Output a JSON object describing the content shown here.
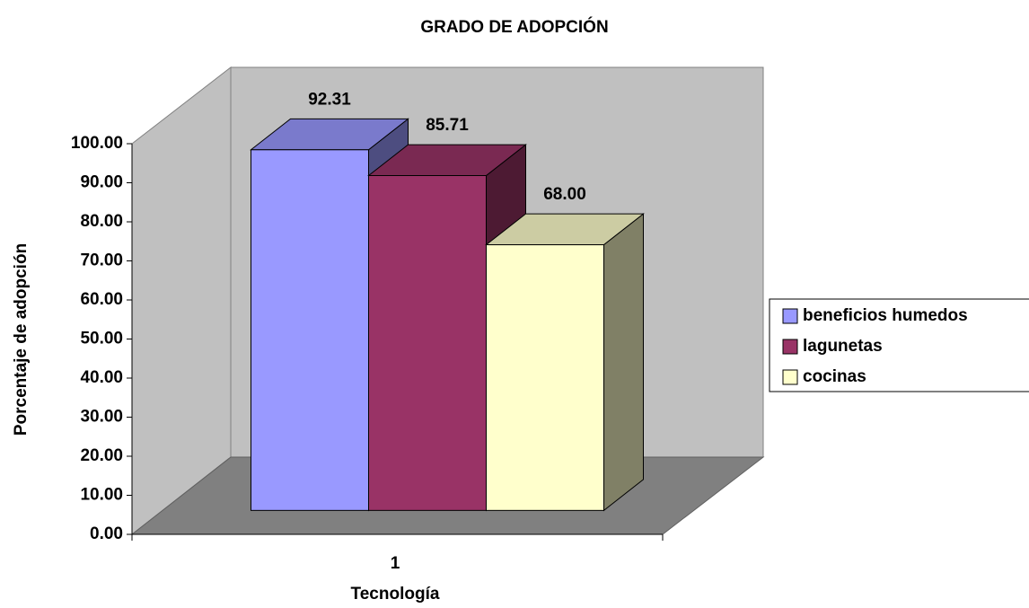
{
  "chart_data": {
    "type": "bar3d",
    "title": "GRADO DE ADOPCIÓN",
    "x_label": "Tecnología",
    "y_label": "Porcentaje de adopción",
    "categories": [
      "1"
    ],
    "series": [
      {
        "name": "beneficios humedos",
        "color": "#9999ff",
        "values": [
          92.31
        ],
        "value_labels": [
          "92.31"
        ]
      },
      {
        "name": "lagunetas",
        "color": "#993366",
        "values": [
          85.71
        ],
        "value_labels": [
          "85.71"
        ]
      },
      {
        "name": "cocinas",
        "color": "#ffffcc",
        "values": [
          68.0
        ],
        "value_labels": [
          "68.00"
        ]
      }
    ],
    "ylim": [
      0,
      100
    ],
    "yticks": [
      {
        "value": 0,
        "label": "0.00"
      },
      {
        "value": 10,
        "label": "10.00"
      },
      {
        "value": 20,
        "label": "20.00"
      },
      {
        "value": 30,
        "label": "30.00"
      },
      {
        "value": 40,
        "label": "40.00"
      },
      {
        "value": 50,
        "label": "50.00"
      },
      {
        "value": 60,
        "label": "60.00"
      },
      {
        "value": 70,
        "label": "70.00"
      },
      {
        "value": 80,
        "label": "80.00"
      },
      {
        "value": 90,
        "label": "90.00"
      },
      {
        "value": 100,
        "label": "100.00"
      }
    ],
    "legend": "right"
  }
}
